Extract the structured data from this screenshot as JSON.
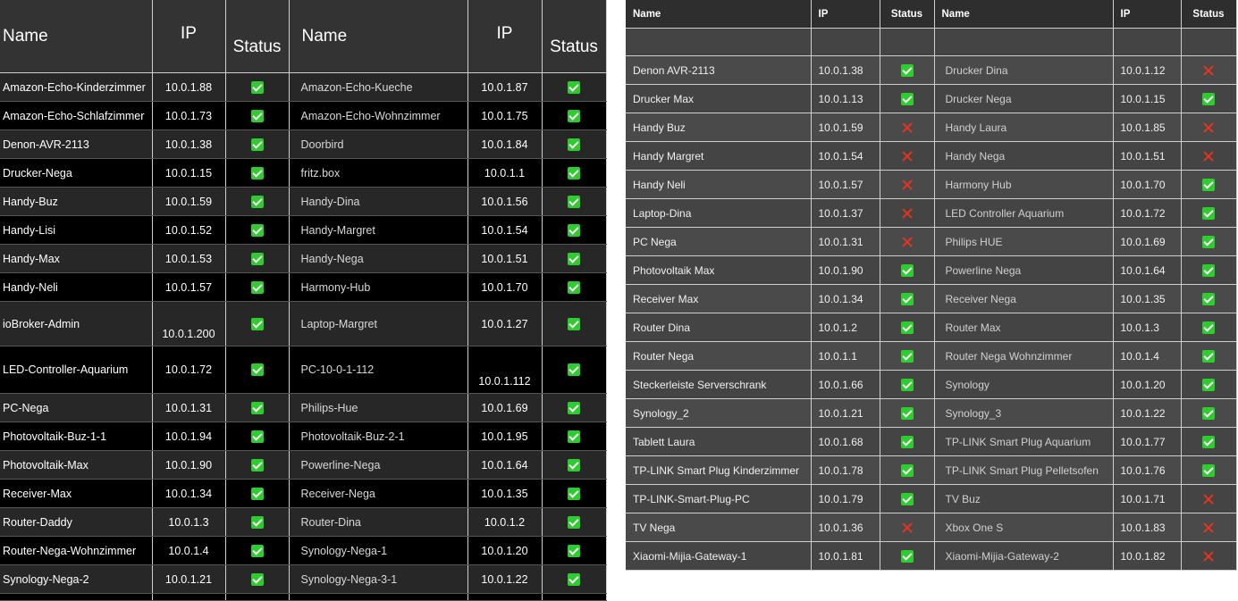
{
  "left_table": {
    "headers": {
      "name": "Name",
      "ip": "IP",
      "status": "Status"
    },
    "rows": [
      {
        "name": "Amazon-Echo-Kinderzimmer",
        "ip": "10.0.1.88",
        "status": "ok",
        "name2": "Amazon-Echo-Kueche",
        "ip2": "10.0.1.87",
        "status2": "ok"
      },
      {
        "name": "Amazon-Echo-Schlafzimmer",
        "ip": "10.0.1.73",
        "status": "ok",
        "name2": "Amazon-Echo-Wohnzimmer",
        "ip2": "10.0.1.75",
        "status2": "ok"
      },
      {
        "name": "Denon-AVR-2113",
        "ip": "10.0.1.38",
        "status": "ok",
        "name2": "Doorbird",
        "ip2": "10.0.1.84",
        "status2": "ok"
      },
      {
        "name": "Drucker-Nega",
        "ip": "10.0.1.15",
        "status": "ok",
        "name2": "fritz.box",
        "ip2": "10.0.1.1",
        "status2": "ok"
      },
      {
        "name": "Handy-Buz",
        "ip": "10.0.1.59",
        "status": "ok",
        "name2": "Handy-Dina",
        "ip2": "10.0.1.56",
        "status2": "ok"
      },
      {
        "name": "Handy-Lisi",
        "ip": "10.0.1.52",
        "status": "ok",
        "name2": "Handy-Margret",
        "ip2": "10.0.1.54",
        "status2": "ok"
      },
      {
        "name": "Handy-Max",
        "ip": "10.0.1.53",
        "status": "ok",
        "name2": "Handy-Nega",
        "ip2": "10.0.1.51",
        "status2": "ok"
      },
      {
        "name": "Handy-Neli",
        "ip": "10.0.1.57",
        "status": "ok",
        "name2": "Harmony-Hub",
        "ip2": "10.0.1.70",
        "status2": "ok"
      },
      {
        "name": "ioBroker-Admin",
        "ip": "10.0.1.200",
        "status": "ok",
        "name2": "Laptop-Margret",
        "ip2": "10.0.1.27",
        "status2": "ok"
      },
      {
        "name": "LED-Controller-Aquarium",
        "ip": "10.0.1.72",
        "status": "ok",
        "name2": "PC-10-0-1-112",
        "ip2": "10.0.1.112",
        "status2": "ok"
      },
      {
        "name": "PC-Nega",
        "ip": "10.0.1.31",
        "status": "ok",
        "name2": "Philips-Hue",
        "ip2": "10.0.1.69",
        "status2": "ok"
      },
      {
        "name": "Photovoltaik-Buz-1-1",
        "ip": "10.0.1.94",
        "status": "ok",
        "name2": "Photovoltaik-Buz-2-1",
        "ip2": "10.0.1.95",
        "status2": "ok"
      },
      {
        "name": "Photovoltaik-Max",
        "ip": "10.0.1.90",
        "status": "ok",
        "name2": "Powerline-Nega",
        "ip2": "10.0.1.64",
        "status2": "ok"
      },
      {
        "name": "Receiver-Max",
        "ip": "10.0.1.34",
        "status": "ok",
        "name2": "Receiver-Nega",
        "ip2": "10.0.1.35",
        "status2": "ok"
      },
      {
        "name": "Router-Daddy",
        "ip": "10.0.1.3",
        "status": "ok",
        "name2": "Router-Dina",
        "ip2": "10.0.1.2",
        "status2": "ok"
      },
      {
        "name": "Router-Nega-Wohnzimmer",
        "ip": "10.0.1.4",
        "status": "ok",
        "name2": "Synology-Nega-1",
        "ip2": "10.0.1.20",
        "status2": "ok"
      },
      {
        "name": "Synology-Nega-2",
        "ip": "10.0.1.21",
        "status": "ok",
        "name2": "Synology-Nega-3-1",
        "ip2": "10.0.1.22",
        "status2": "ok"
      }
    ]
  },
  "right_table": {
    "headers": {
      "name": "Name",
      "ip": "IP",
      "status": "Status"
    },
    "rows": [
      {
        "name": "Denon AVR-2113",
        "ip": "10.0.1.38",
        "status": "ok",
        "name2": "Drucker Dina",
        "ip2": "10.0.1.12",
        "status2": "fail"
      },
      {
        "name": "Drucker Max",
        "ip": "10.0.1.13",
        "status": "ok",
        "name2": "Drucker Nega",
        "ip2": "10.0.1.15",
        "status2": "ok"
      },
      {
        "name": "Handy Buz",
        "ip": "10.0.1.59",
        "status": "fail",
        "name2": "Handy Laura",
        "ip2": "10.0.1.85",
        "status2": "fail"
      },
      {
        "name": "Handy Margret",
        "ip": "10.0.1.54",
        "status": "fail",
        "name2": "Handy Nega",
        "ip2": "10.0.1.51",
        "status2": "fail"
      },
      {
        "name": "Handy Neli",
        "ip": "10.0.1.57",
        "status": "fail",
        "name2": "Harmony Hub",
        "ip2": "10.0.1.70",
        "status2": "ok"
      },
      {
        "name": "Laptop-Dina",
        "ip": "10.0.1.37",
        "status": "fail",
        "name2": "LED Controller Aquarium",
        "ip2": "10.0.1.72",
        "status2": "ok"
      },
      {
        "name": "PC Nega",
        "ip": "10.0.1.31",
        "status": "fail",
        "name2": "Philips HUE",
        "ip2": "10.0.1.69",
        "status2": "ok"
      },
      {
        "name": "Photovoltaik Max",
        "ip": "10.0.1.90",
        "status": "ok",
        "name2": "Powerline Nega",
        "ip2": "10.0.1.64",
        "status2": "ok"
      },
      {
        "name": "Receiver Max",
        "ip": "10.0.1.34",
        "status": "ok",
        "name2": "Receiver Nega",
        "ip2": "10.0.1.35",
        "status2": "ok"
      },
      {
        "name": "Router Dina",
        "ip": "10.0.1.2",
        "status": "ok",
        "name2": "Router Max",
        "ip2": "10.0.1.3",
        "status2": "ok"
      },
      {
        "name": "Router Nega",
        "ip": "10.0.1.1",
        "status": "ok",
        "name2": "Router Nega Wohnzimmer",
        "ip2": "10.0.1.4",
        "status2": "ok"
      },
      {
        "name": "Steckerleiste Serverschrank",
        "ip": "10.0.1.66",
        "status": "ok",
        "name2": "Synology",
        "ip2": "10.0.1.20",
        "status2": "ok"
      },
      {
        "name": "Synology_2",
        "ip": "10.0.1.21",
        "status": "ok",
        "name2": "Synology_3",
        "ip2": "10.0.1.22",
        "status2": "ok"
      },
      {
        "name": "Tablett Laura",
        "ip": "10.0.1.68",
        "status": "ok",
        "name2": "TP-LINK Smart Plug Aquarium",
        "ip2": "10.0.1.77",
        "status2": "ok"
      },
      {
        "name": "TP-LINK Smart Plug Kinderzimmer",
        "ip": "10.0.1.78",
        "status": "ok",
        "name2": "TP-LINK Smart Plug Pelletsofen",
        "ip2": "10.0.1.76",
        "status2": "ok"
      },
      {
        "name": "TP-LINK-Smart-Plug-PC",
        "ip": "10.0.1.79",
        "status": "ok",
        "name2": "TV Buz",
        "ip2": "10.0.1.71",
        "status2": "fail"
      },
      {
        "name": "TV Nega",
        "ip": "10.0.1.36",
        "status": "fail",
        "name2": "Xbox One S",
        "ip2": "10.0.1.83",
        "status2": "fail"
      },
      {
        "name": "Xiaomi-Mijia-Gateway-1",
        "ip": "10.0.1.81",
        "status": "ok",
        "name2": "Xiaomi-Mijia-Gateway-2",
        "ip2": "10.0.1.82",
        "status2": "fail"
      }
    ]
  },
  "icons": {
    "ok": "checkbox-ok-icon",
    "fail": "cross-fail-icon"
  },
  "colors": {
    "ok": "#2ecc2e",
    "fail": "#e8341c"
  }
}
